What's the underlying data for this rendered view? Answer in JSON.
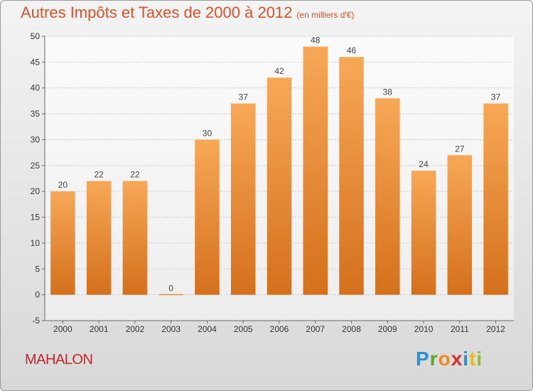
{
  "header": {
    "title": "Autres Impôts et Taxes de 2000 à 2012",
    "unit": "(en milliers d'€)"
  },
  "footer": {
    "commune": "MAHALON",
    "brand": [
      "P",
      "r",
      "o",
      "x",
      "i",
      "t",
      "i"
    ]
  },
  "colors": {
    "bar_top": "#f7a857",
    "bar_bottom": "#d4701c",
    "title": "#d4542c",
    "commune": "#c4262a",
    "grid": "#c8c8c8"
  },
  "chart_data": {
    "type": "bar",
    "title": "Autres Impôts et Taxes de 2000 à 2012",
    "subtitle": "(en milliers d'€)",
    "categories": [
      "2000",
      "2001",
      "2002",
      "2003",
      "2004",
      "2005",
      "2006",
      "2007",
      "2008",
      "2009",
      "2010",
      "2011",
      "2012"
    ],
    "values": [
      20,
      22,
      22,
      0,
      30,
      37,
      42,
      48,
      46,
      38,
      24,
      27,
      37
    ],
    "ylim": [
      -5,
      50
    ],
    "yticks": [
      -5,
      0,
      5,
      10,
      15,
      20,
      25,
      30,
      35,
      40,
      45,
      50
    ],
    "grid": true,
    "data_labels": true
  }
}
